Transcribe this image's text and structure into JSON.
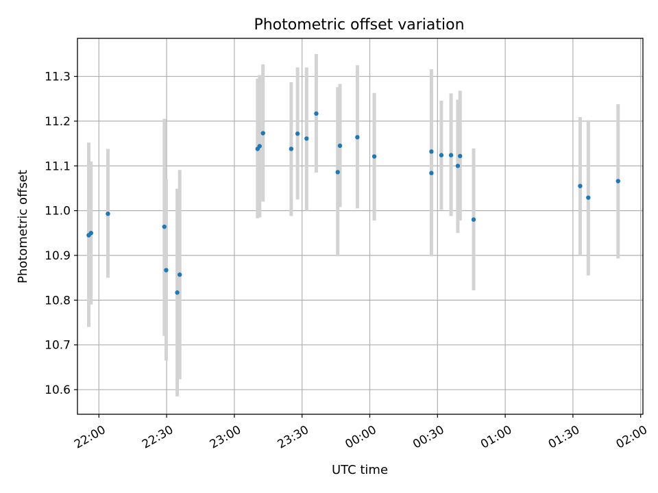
{
  "chart_data": {
    "type": "scatter",
    "title": "Photometric offset variation",
    "xlabel": "UTC time",
    "ylabel": "Photometric offset",
    "x_ticks": [
      "22:00",
      "22:30",
      "23:00",
      "23:30",
      "00:00",
      "00:30",
      "01:00",
      "01:30",
      "02:00"
    ],
    "y_ticks": [
      "10.6",
      "10.7",
      "10.8",
      "10.9",
      "11.0",
      "11.1",
      "11.2",
      "11.3"
    ],
    "x_tick_values": [
      "21:60",
      "22:30",
      "22:60",
      "23:30",
      "23:60",
      "24:30",
      "24:60",
      "25:30",
      "25:60"
    ],
    "y_tick_values": [
      10.6,
      10.7,
      10.8,
      10.9,
      11.0,
      11.1,
      11.2,
      11.3
    ],
    "xlim": [
      "21:50.5",
      "26:01"
    ],
    "ylim": [
      10.545,
      11.385
    ],
    "grid": true,
    "marker_color": "#1f77b4",
    "errorbar_color": "#d3d3d3",
    "points": [
      {
        "time": "21:55.5",
        "value": 10.945,
        "low": 10.74,
        "high": 11.152
      },
      {
        "time": "21:56.5",
        "value": 10.95,
        "low": 10.79,
        "high": 11.11
      },
      {
        "time": "22:04.0",
        "value": 10.993,
        "low": 10.85,
        "high": 11.138
      },
      {
        "time": "22:29.0",
        "value": 10.964,
        "low": 10.72,
        "high": 11.205
      },
      {
        "time": "22:29.8",
        "value": 10.867,
        "low": 10.665,
        "high": 11.07
      },
      {
        "time": "22:34.7",
        "value": 10.817,
        "low": 10.585,
        "high": 11.049
      },
      {
        "time": "22:35.8",
        "value": 10.857,
        "low": 10.623,
        "high": 11.091
      },
      {
        "time": "23:10.3",
        "value": 11.138,
        "low": 10.983,
        "high": 11.295
      },
      {
        "time": "23:11.2",
        "value": 11.144,
        "low": 10.985,
        "high": 11.303
      },
      {
        "time": "23:12.7",
        "value": 11.173,
        "low": 11.02,
        "high": 11.327
      },
      {
        "time": "23:25.2",
        "value": 11.138,
        "low": 10.988,
        "high": 11.287
      },
      {
        "time": "23:28.0",
        "value": 11.172,
        "low": 11.025,
        "high": 11.32
      },
      {
        "time": "23:32.0",
        "value": 11.161,
        "low": 11.0,
        "high": 11.32
      },
      {
        "time": "23:36.3",
        "value": 11.217,
        "low": 11.085,
        "high": 11.35
      },
      {
        "time": "23:45.8",
        "value": 11.086,
        "low": 10.898,
        "high": 11.276
      },
      {
        "time": "23:46.8",
        "value": 11.145,
        "low": 11.008,
        "high": 11.283
      },
      {
        "time": "23:54.5",
        "value": 11.164,
        "low": 11.005,
        "high": 11.325
      },
      {
        "time": "24:02.0",
        "value": 11.121,
        "low": 10.978,
        "high": 11.263
      },
      {
        "time": "24:27.3",
        "value": 11.084,
        "low": 10.898,
        "high": 11.27
      },
      {
        "time": "24:27.3",
        "value": 11.132,
        "low": 10.948,
        "high": 11.316
      },
      {
        "time": "24:31.7",
        "value": 11.124,
        "low": 11.002,
        "high": 11.246
      },
      {
        "time": "24:36.0",
        "value": 11.124,
        "low": 10.988,
        "high": 11.262
      },
      {
        "time": "24:39.0",
        "value": 11.1,
        "low": 10.95,
        "high": 11.248
      },
      {
        "time": "24:40.0",
        "value": 11.122,
        "low": 10.978,
        "high": 11.268
      },
      {
        "time": "24:46.0",
        "value": 10.98,
        "low": 10.822,
        "high": 11.139
      },
      {
        "time": "25:33.2",
        "value": 11.055,
        "low": 10.9,
        "high": 11.209
      },
      {
        "time": "25:36.8",
        "value": 11.029,
        "low": 10.855,
        "high": 11.202
      },
      {
        "time": "25:50.0",
        "value": 11.066,
        "low": 10.893,
        "high": 11.238
      }
    ]
  }
}
